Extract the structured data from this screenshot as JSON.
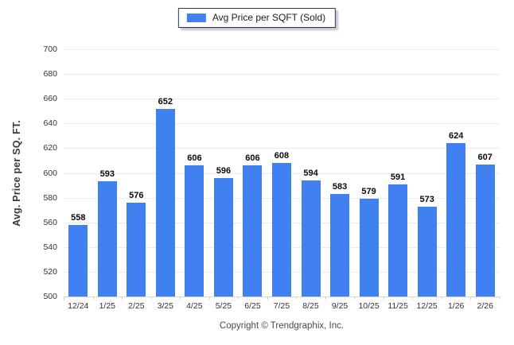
{
  "legend": {
    "label": "Avg Price per SQFT (Sold)"
  },
  "footer": {
    "copyright": "Copyright © Trendgraphix, Inc."
  },
  "colors": {
    "bar": "#4080f0",
    "legend_border": "#2e3a54",
    "grid": "#ebedef",
    "axis_line": "#cfd2d6",
    "tick_label": "#333333",
    "value_label": "#0a0a0a",
    "y_title": "#3a3a3a",
    "footer_text": "#4a4a4a"
  },
  "chart_data": {
    "type": "bar",
    "title": "",
    "xlabel": "",
    "ylabel": "Avg. Price per SQ. FT.",
    "legend_entries": [
      "Avg Price per SQFT (Sold)"
    ],
    "legend_position": "top-center",
    "grid": "horizontal",
    "value_labels": true,
    "ylim": [
      500,
      700
    ],
    "ytick_interval": 20,
    "yticks": [
      700,
      680,
      660,
      640,
      620,
      600,
      580,
      560,
      540,
      520,
      500
    ],
    "categories": [
      "12/24",
      "1/25",
      "2/25",
      "3/25",
      "4/25",
      "5/25",
      "6/25",
      "7/25",
      "8/25",
      "9/25",
      "10/25",
      "11/25",
      "12/25",
      "1/26",
      "2/26"
    ],
    "values": [
      558,
      593,
      576,
      652,
      606,
      596,
      606,
      608,
      594,
      583,
      579,
      591,
      573,
      624,
      607
    ]
  }
}
